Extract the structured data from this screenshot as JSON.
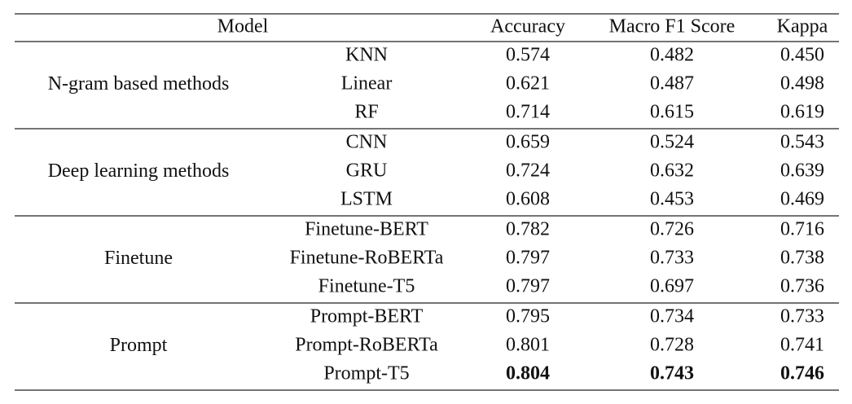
{
  "table": {
    "header": [
      "Model",
      "Accuracy",
      "Macro F1 Score",
      "Kappa"
    ],
    "groups": [
      {
        "name": "N-gram based methods",
        "rows": [
          {
            "cells": [
              "KNN",
              "0.574",
              "0.482",
              "0.450"
            ]
          },
          {
            "cells": [
              "Linear",
              "0.621",
              "0.487",
              "0.498"
            ]
          },
          {
            "cells": [
              "RF",
              "0.714",
              "0.615",
              "0.619"
            ]
          }
        ]
      },
      {
        "name": "Deep learning methods",
        "rows": [
          {
            "cells": [
              "CNN",
              "0.659",
              "0.524",
              "0.543"
            ]
          },
          {
            "cells": [
              "GRU",
              "0.724",
              "0.632",
              "0.639"
            ]
          },
          {
            "cells": [
              "LSTM",
              "0.608",
              "0.453",
              "0.469"
            ]
          }
        ]
      },
      {
        "name": "Finetune",
        "rows": [
          {
            "cells": [
              "Finetune-BERT",
              "0.782",
              "0.726",
              "0.716"
            ]
          },
          {
            "cells": [
              "Finetune-RoBERTa",
              "0.797",
              "0.733",
              "0.738"
            ]
          },
          {
            "cells": [
              "Finetune-T5",
              "0.797",
              "0.697",
              "0.736"
            ]
          }
        ]
      },
      {
        "name": "Prompt",
        "rows": [
          {
            "cells": [
              "Prompt-BERT",
              "0.795",
              "0.734",
              "0.733"
            ]
          },
          {
            "cells": [
              "Prompt-RoBERTa",
              "0.801",
              "0.728",
              "0.741"
            ]
          },
          {
            "cells": [
              "Prompt-T5",
              "0.804",
              "0.743",
              "0.746"
            ],
            "bold": true
          }
        ]
      }
    ]
  }
}
